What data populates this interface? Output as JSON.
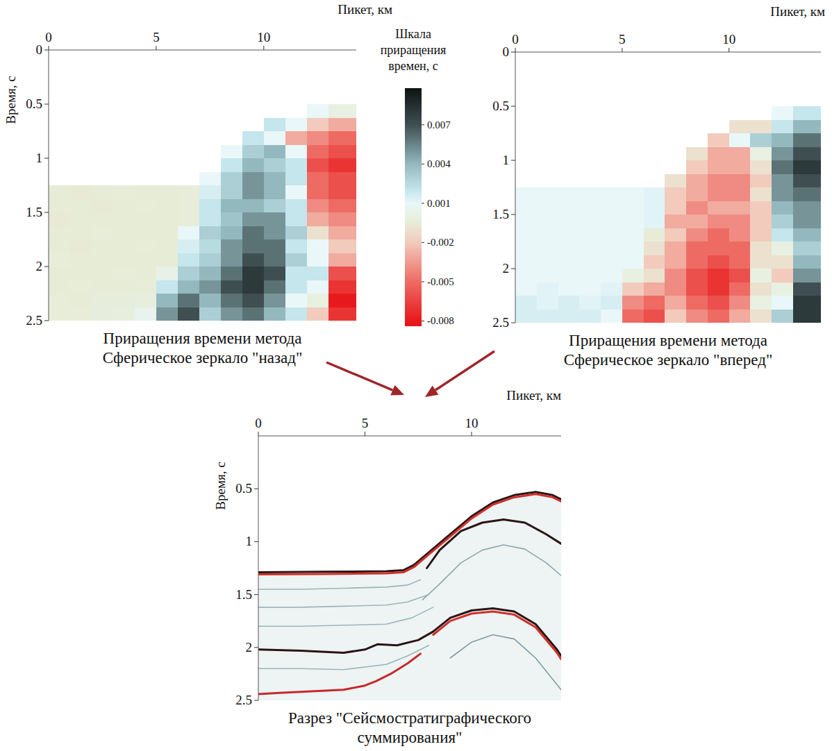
{
  "chart_data": [
    {
      "type": "heatmap",
      "title": "Приращения времени метода Сферическое зеркало \"назад\"",
      "x_label": "Пикет, км",
      "y_label": "Время, с",
      "xlim": [
        0,
        14.3
      ],
      "ylim": [
        0,
        2.5
      ],
      "xticks": [
        0,
        5,
        10
      ],
      "yticks": [
        0,
        0.5,
        1,
        1.5,
        2,
        2.5
      ],
      "x_edges": [
        0,
        1,
        2,
        3,
        4,
        5,
        6,
        7,
        8,
        9,
        10,
        11,
        12,
        13,
        14.3
      ],
      "y_edges": [
        0,
        0.125,
        0.25,
        0.375,
        0.5,
        0.625,
        0.75,
        0.875,
        1,
        1.125,
        1.25,
        1.375,
        1.5,
        1.625,
        1.75,
        1.875,
        2,
        2.125,
        2.25,
        2.375,
        2.5
      ],
      "cells": [
        [
          null,
          null,
          null,
          null,
          null,
          null,
          null,
          null,
          null,
          null,
          null,
          null,
          null,
          null
        ],
        [
          null,
          null,
          null,
          null,
          null,
          null,
          null,
          null,
          null,
          null,
          null,
          null,
          null,
          null
        ],
        [
          null,
          null,
          null,
          null,
          null,
          null,
          null,
          null,
          null,
          null,
          null,
          null,
          null,
          null
        ],
        [
          null,
          null,
          null,
          null,
          null,
          null,
          null,
          null,
          null,
          null,
          null,
          null,
          null,
          null
        ],
        [
          null,
          null,
          null,
          null,
          null,
          null,
          null,
          null,
          null,
          null,
          null,
          null,
          0.001,
          0.0
        ],
        [
          null,
          null,
          null,
          null,
          null,
          null,
          null,
          null,
          null,
          null,
          0.002,
          0.001,
          -0.002,
          -0.003
        ],
        [
          null,
          null,
          null,
          null,
          null,
          null,
          null,
          null,
          null,
          0.002,
          0.001,
          -0.003,
          -0.004,
          -0.005
        ],
        [
          null,
          null,
          null,
          null,
          null,
          null,
          null,
          null,
          0.001,
          0.003,
          0.004,
          0.001,
          -0.005,
          -0.006
        ],
        [
          null,
          null,
          null,
          null,
          null,
          null,
          null,
          null,
          0.002,
          0.004,
          0.003,
          0.002,
          -0.006,
          -0.007
        ],
        [
          null,
          null,
          null,
          null,
          null,
          null,
          null,
          0.001,
          0.003,
          0.005,
          0.004,
          0.002,
          -0.005,
          -0.006
        ],
        [
          -0.0005,
          -0.0006,
          -0.0005,
          -0.0004,
          -0.0005,
          -0.0005,
          -0.0004,
          0.0015,
          0.003,
          0.005,
          0.004,
          0.001,
          -0.005,
          -0.006
        ],
        [
          -0.0005,
          -0.0005,
          -0.0006,
          -0.0005,
          -0.0004,
          -0.0005,
          -0.0004,
          0.002,
          0.004,
          0.004,
          0.003,
          0.002,
          -0.004,
          -0.005
        ],
        [
          -0.0006,
          -0.0005,
          -0.0005,
          -0.0005,
          -0.0005,
          -0.0005,
          -0.0004,
          0.002,
          0.0035,
          0.005,
          0.005,
          0.002,
          -0.003,
          -0.004
        ],
        [
          -0.0005,
          -0.0005,
          -0.0004,
          -0.0005,
          -0.0005,
          -0.0005,
          0.001,
          0.003,
          0.004,
          0.006,
          0.005,
          0.003,
          -0.001,
          -0.003
        ],
        [
          -0.0005,
          -0.0006,
          -0.0005,
          -0.0005,
          -0.0004,
          -0.0005,
          0.0015,
          0.0025,
          0.005,
          0.006,
          0.006,
          0.002,
          0.001,
          -0.002
        ],
        [
          -0.0004,
          -0.0005,
          -0.0005,
          -0.0005,
          -0.0005,
          -0.0005,
          0.002,
          0.003,
          0.005,
          0.007,
          0.006,
          0.003,
          0.001,
          -0.003
        ],
        [
          -0.0005,
          -0.0005,
          -0.0005,
          -0.0004,
          -0.0005,
          0.0002,
          0.003,
          0.004,
          0.006,
          0.008,
          0.007,
          0.002,
          0.002,
          -0.006
        ],
        [
          -0.0005,
          -0.0004,
          -0.0005,
          -0.0005,
          -0.0004,
          0.002,
          0.004,
          0.005,
          0.007,
          0.008,
          0.006,
          0.002,
          0.001,
          -0.007
        ],
        [
          -0.0004,
          -0.0005,
          -0.0003,
          -0.0003,
          -0.0002,
          0.004,
          0.006,
          0.004,
          0.006,
          0.007,
          0.005,
          0.001,
          0.0,
          -0.008
        ],
        [
          -0.0004,
          -0.0004,
          -0.0003,
          -0.0002,
          0.0005,
          0.005,
          0.007,
          0.003,
          0.005,
          0.006,
          0.004,
          0.002,
          -0.002,
          -0.007
        ]
      ]
    },
    {
      "type": "heatmap",
      "title": "Приращения времени метода Сферическое зеркало \"вперед\"",
      "x_label": "Пикет, км",
      "xlim": [
        0,
        14.3
      ],
      "ylim": [
        0,
        2.5
      ],
      "xticks": [
        0,
        5,
        10
      ],
      "yticks": [
        0,
        0.5,
        1,
        1.5,
        2,
        2.5
      ],
      "x_edges": [
        0,
        1,
        2,
        3,
        4,
        5,
        6,
        7,
        8,
        9,
        10,
        11,
        12,
        13,
        14.3
      ],
      "y_edges": [
        0,
        0.125,
        0.25,
        0.375,
        0.5,
        0.625,
        0.75,
        0.875,
        1,
        1.125,
        1.25,
        1.375,
        1.5,
        1.625,
        1.75,
        1.875,
        2,
        2.125,
        2.25,
        2.375,
        2.5
      ],
      "cells": [
        [
          null,
          null,
          null,
          null,
          null,
          null,
          null,
          null,
          null,
          null,
          null,
          null,
          null,
          null
        ],
        [
          null,
          null,
          null,
          null,
          null,
          null,
          null,
          null,
          null,
          null,
          null,
          null,
          null,
          null
        ],
        [
          null,
          null,
          null,
          null,
          null,
          null,
          null,
          null,
          null,
          null,
          null,
          null,
          null,
          null
        ],
        [
          null,
          null,
          null,
          null,
          null,
          null,
          null,
          null,
          null,
          null,
          null,
          null,
          null,
          null
        ],
        [
          null,
          null,
          null,
          null,
          null,
          null,
          null,
          null,
          null,
          null,
          null,
          null,
          0.001,
          0.002
        ],
        [
          null,
          null,
          null,
          null,
          null,
          null,
          null,
          null,
          null,
          null,
          -0.001,
          -0.001,
          0.002,
          0.004
        ],
        [
          null,
          null,
          null,
          null,
          null,
          null,
          null,
          null,
          null,
          -0.002,
          0.001,
          0.003,
          0.004,
          0.006
        ],
        [
          null,
          null,
          null,
          null,
          null,
          null,
          null,
          null,
          -0.001,
          -0.003,
          -0.003,
          0.0,
          0.005,
          0.007
        ],
        [
          null,
          null,
          null,
          null,
          null,
          null,
          null,
          null,
          -0.002,
          -0.003,
          -0.003,
          -0.001,
          0.006,
          0.008
        ],
        [
          null,
          null,
          null,
          null,
          null,
          null,
          null,
          -0.001,
          -0.003,
          -0.004,
          -0.004,
          -0.002,
          0.005,
          0.007
        ],
        [
          0.001,
          0.001,
          0.001,
          0.001,
          0.001,
          0.001,
          0.0012,
          -0.002,
          -0.003,
          -0.004,
          -0.004,
          -0.001,
          0.005,
          0.006
        ],
        [
          0.001,
          0.001,
          0.001,
          0.001,
          0.001,
          0.001,
          0.0012,
          -0.002,
          -0.004,
          -0.003,
          -0.003,
          -0.002,
          0.004,
          0.005
        ],
        [
          0.001,
          0.001,
          0.001,
          0.001,
          0.001,
          0.001,
          0.0012,
          -0.003,
          -0.003,
          -0.004,
          -0.004,
          -0.002,
          0.003,
          0.005
        ],
        [
          0.001,
          0.001,
          0.001,
          0.001,
          0.001,
          0.001,
          -0.0005,
          -0.002,
          -0.004,
          -0.005,
          -0.004,
          -0.002,
          0.002,
          0.004
        ],
        [
          0.001,
          0.001,
          0.001,
          0.001,
          0.001,
          0.001,
          -0.001,
          -0.003,
          -0.005,
          -0.005,
          -0.005,
          -0.001,
          0.0,
          0.003
        ],
        [
          0.001,
          0.001,
          0.001,
          0.001,
          0.001,
          0.001,
          -0.002,
          -0.003,
          -0.005,
          -0.006,
          -0.005,
          -0.001,
          -0.001,
          0.004
        ],
        [
          0.001,
          0.001,
          0.001,
          0.001,
          0.001,
          0.0,
          -0.001,
          -0.004,
          -0.006,
          -0.007,
          -0.006,
          0.0,
          -0.002,
          0.005
        ],
        [
          0.001,
          0.0012,
          0.001,
          0.001,
          0.0012,
          -0.002,
          -0.003,
          -0.004,
          -0.006,
          -0.007,
          -0.005,
          -0.001,
          0.0,
          0.007
        ],
        [
          0.0015,
          0.0012,
          0.0015,
          0.0012,
          0.0015,
          -0.004,
          -0.005,
          -0.003,
          -0.005,
          -0.006,
          -0.004,
          0.0,
          0.001,
          0.008
        ],
        [
          0.0015,
          0.0015,
          0.0015,
          0.0015,
          0.001,
          -0.005,
          -0.006,
          -0.002,
          -0.004,
          -0.005,
          -0.003,
          -0.001,
          0.003,
          0.008
        ]
      ]
    },
    {
      "type": "line",
      "title": "Разрез \"Сейсмостратиграфического суммирования\"",
      "x_label": "Пикет, км",
      "y_label": "Время, с",
      "xlim": [
        0,
        14.2
      ],
      "ylim": [
        0,
        2.5
      ],
      "xticks": [
        0,
        5,
        10
      ],
      "yticks": [
        0.5,
        1,
        1.5,
        2,
        2.5
      ],
      "series": [
        {
          "color": "#2a1414",
          "x": [
            0,
            3,
            6,
            6.8,
            7.3,
            8,
            9,
            10,
            11,
            12,
            13,
            13.8,
            14.2
          ],
          "values": [
            1.29,
            1.285,
            1.28,
            1.27,
            1.22,
            1.1,
            0.93,
            0.76,
            0.63,
            0.56,
            0.53,
            0.56,
            0.6
          ]
        },
        {
          "color": "#d0302a",
          "x": [
            0,
            3,
            6,
            6.8,
            7.3,
            8,
            9,
            10,
            11,
            12,
            13,
            13.8,
            14.2
          ],
          "values": [
            1.31,
            1.305,
            1.3,
            1.29,
            1.24,
            1.12,
            0.95,
            0.78,
            0.65,
            0.58,
            0.55,
            0.58,
            0.62
          ]
        },
        {
          "color": "#2a1414",
          "x": [
            7.9,
            8.5,
            9.5,
            10.5,
            11.5,
            12.5,
            13.5,
            14.2
          ],
          "values": [
            1.25,
            1.08,
            0.9,
            0.82,
            0.79,
            0.82,
            0.93,
            1.02
          ]
        },
        {
          "color": "#8aa7ac",
          "x": [
            7.7,
            8.5,
            9.5,
            10.5,
            11.5,
            12.5,
            13.5,
            14.2
          ],
          "values": [
            1.55,
            1.4,
            1.2,
            1.08,
            1.03,
            1.07,
            1.2,
            1.32
          ]
        },
        {
          "color": "#2a1414",
          "x": [
            8.2,
            9,
            10,
            11,
            12,
            13,
            14,
            14.2
          ],
          "values": [
            1.85,
            1.72,
            1.65,
            1.63,
            1.66,
            1.78,
            2.02,
            2.08
          ]
        },
        {
          "color": "#d0302a",
          "x": [
            8.2,
            9,
            10,
            11,
            12,
            13,
            14,
            14.2
          ],
          "values": [
            1.88,
            1.75,
            1.68,
            1.66,
            1.69,
            1.81,
            2.05,
            2.11
          ]
        },
        {
          "color": "#7e9da3",
          "x": [
            9,
            10,
            11,
            12,
            13,
            14.2
          ],
          "values": [
            2.1,
            1.95,
            1.88,
            1.92,
            2.1,
            2.4
          ]
        },
        {
          "color": "#9bb5b9",
          "x": [
            0,
            2,
            4,
            6,
            7,
            7.6
          ],
          "values": [
            1.45,
            1.45,
            1.44,
            1.43,
            1.41,
            1.36
          ]
        },
        {
          "color": "#9bb5b9",
          "x": [
            0,
            2,
            4,
            6,
            7,
            8
          ],
          "values": [
            1.62,
            1.62,
            1.61,
            1.6,
            1.57,
            1.5
          ]
        },
        {
          "color": "#9bb5b9",
          "x": [
            0,
            2,
            4,
            6,
            7.2,
            8.2
          ],
          "values": [
            1.8,
            1.8,
            1.79,
            1.78,
            1.72,
            1.62
          ]
        },
        {
          "color": "#2a1414",
          "x": [
            0,
            2,
            4,
            5,
            5.6,
            6.5,
            7.5,
            8.2
          ],
          "values": [
            2.02,
            2.03,
            2.05,
            2.02,
            1.97,
            1.98,
            1.93,
            1.85
          ]
        },
        {
          "color": "#9bb5b9",
          "x": [
            0,
            2,
            4,
            6,
            7,
            8
          ],
          "values": [
            2.2,
            2.2,
            2.21,
            2.16,
            2.08,
            1.98
          ]
        },
        {
          "color": "#c8282a",
          "x": [
            0,
            1,
            2,
            3,
            4,
            5,
            5.5,
            6.2,
            7,
            7.6
          ],
          "values": [
            2.44,
            2.43,
            2.42,
            2.41,
            2.4,
            2.36,
            2.32,
            2.25,
            2.15,
            2.06
          ]
        }
      ]
    }
  ],
  "colorbar": {
    "title": "Шкала приращения времен, с",
    "range": [
      -0.0084,
      0.0098
    ],
    "ticks": [
      0.007,
      0.004,
      0.001,
      -0.002,
      -0.005,
      -0.008
    ]
  }
}
